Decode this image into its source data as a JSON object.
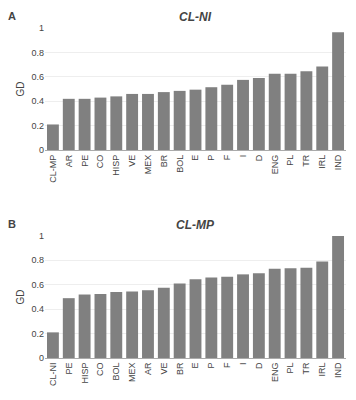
{
  "chart_data": [
    {
      "type": "bar",
      "title": "CL-NI",
      "categories": [
        "CL-MP",
        "AR",
        "PE",
        "CO",
        "HISP",
        "VE",
        "MEX",
        "BR",
        "BOL",
        "E",
        "P",
        "F",
        "I",
        "D",
        "ENG",
        "PL",
        "TR",
        "IRL",
        "IND"
      ],
      "values": [
        0.21,
        0.42,
        0.42,
        0.43,
        0.44,
        0.46,
        0.46,
        0.475,
        0.485,
        0.495,
        0.515,
        0.535,
        0.575,
        0.59,
        0.625,
        0.625,
        0.645,
        0.685,
        0.965
      ],
      "color": "#808080",
      "ylabel": "GD",
      "ylim": [
        0,
        1
      ],
      "yticks": [
        0,
        0.2,
        0.4,
        0.6,
        0.8,
        1
      ],
      "grid": true,
      "annotations": [
        "A"
      ]
    },
    {
      "type": "bar",
      "title": "CL-MP",
      "categories": [
        "CL-NI",
        "PE",
        "HISP",
        "CO",
        "BOL",
        "MEX",
        "AR",
        "VE",
        "BR",
        "E",
        "P",
        "F",
        "I",
        "D",
        "ENG",
        "PL",
        "TR",
        "IRL",
        "IND"
      ],
      "values": [
        0.21,
        0.49,
        0.52,
        0.525,
        0.54,
        0.545,
        0.555,
        0.575,
        0.61,
        0.645,
        0.66,
        0.665,
        0.685,
        0.695,
        0.73,
        0.735,
        0.74,
        0.79,
        1.0
      ],
      "color": "#808080",
      "ylabel": "GD",
      "ylim": [
        0,
        1
      ],
      "yticks": [
        0,
        0.2,
        0.4,
        0.6,
        0.8,
        1
      ],
      "grid": true,
      "annotations": [
        "B"
      ]
    }
  ]
}
